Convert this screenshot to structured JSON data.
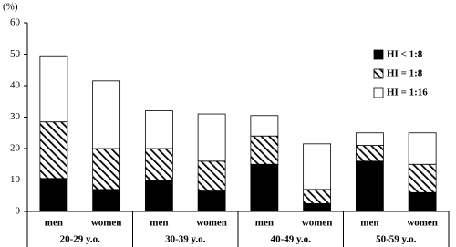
{
  "chart_data": {
    "type": "stacked-bar",
    "y_label": "(%)",
    "categories": [
      "men",
      "women",
      "men",
      "women",
      "men",
      "women",
      "men",
      "women"
    ],
    "groups": [
      "20-29 y.o.",
      "30-39 y.o.",
      "40-49 y.o.",
      "50-59 y.o."
    ],
    "series": [
      {
        "name": "HI < 1:8",
        "color": "#000000",
        "values": [
          10.5,
          7,
          10,
          6.5,
          15,
          2.5,
          16,
          6
        ]
      },
      {
        "name": "HI = 1:8",
        "color": "#000000",
        "pattern": "diagonal",
        "values": [
          18,
          13,
          10,
          9.5,
          9,
          4.5,
          5,
          9
        ]
      },
      {
        "name": "HI = 1:16",
        "color": "#ffffff",
        "values": [
          21,
          21.5,
          12,
          15,
          6.5,
          14.5,
          4,
          10
        ]
      }
    ],
    "ylim": [
      0,
      60
    ],
    "yticks": [
      0,
      10,
      20,
      30,
      40,
      50,
      60
    ],
    "grid": false,
    "legend": "right"
  }
}
